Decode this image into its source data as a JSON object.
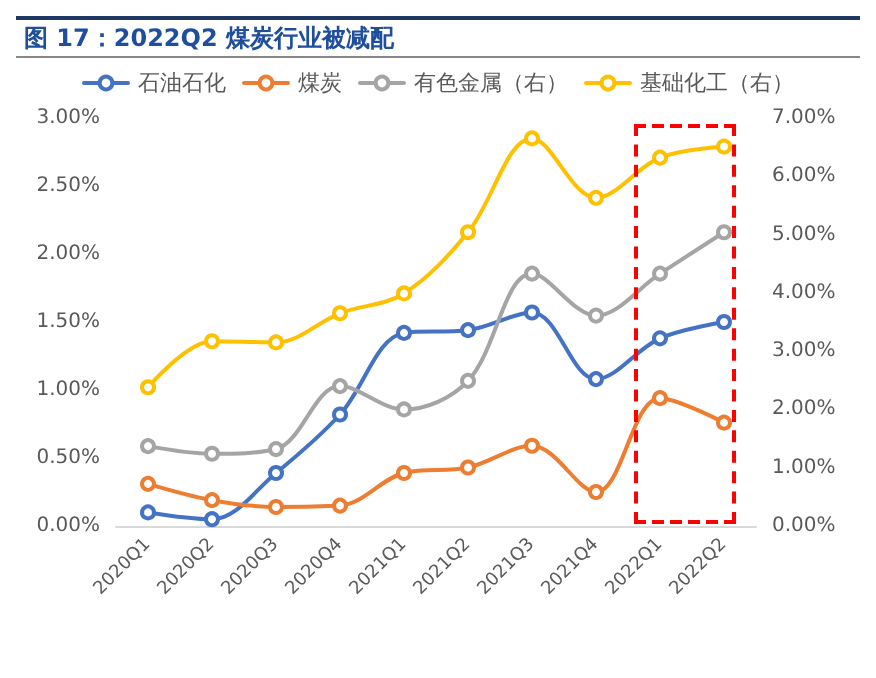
{
  "chart_data": {
    "type": "line",
    "title": "图 17：2022Q2 煤炭行业被减配",
    "categories": [
      "2020Q1",
      "2020Q2",
      "2020Q3",
      "2020Q4",
      "2021Q1",
      "2021Q2",
      "2021Q3",
      "2021Q4",
      "2022Q1",
      "2022Q2"
    ],
    "series": [
      {
        "name": "石油石化",
        "color": "#4472c4",
        "values": [
          0.1,
          0.05,
          0.39,
          0.82,
          1.42,
          1.44,
          1.57,
          1.08,
          1.38,
          1.5
        ]
      },
      {
        "name": "煤炭",
        "color": "#ed7d31",
        "values": [
          0.31,
          0.19,
          0.14,
          0.15,
          0.39,
          0.43,
          0.59,
          0.25,
          0.94,
          0.76
        ]
      },
      {
        "name": "有色金属（右）",
        "color": "#a5a5a5",
        "axis": "y2",
        "values": [
          1.37,
          1.24,
          1.32,
          2.4,
          2.0,
          2.49,
          4.33,
          3.61,
          4.33,
          5.04
        ]
      },
      {
        "name": "基础化工（右）",
        "color": "#ffc000",
        "axis": "y2",
        "values": [
          2.38,
          3.17,
          3.15,
          3.65,
          3.99,
          5.04,
          6.65,
          5.63,
          6.32,
          6.51
        ]
      }
    ],
    "ylim": [
      0,
      3
    ],
    "yticks": [
      {
        "value": 0,
        "label": "0.00%"
      },
      {
        "value": 0.5,
        "label": "0.50%"
      },
      {
        "value": 1,
        "label": "1.00%"
      },
      {
        "value": 1.5,
        "label": "1.50%"
      },
      {
        "value": 2,
        "label": "2.00%"
      },
      {
        "value": 2.5,
        "label": "2.50%"
      },
      {
        "value": 3,
        "label": "3.00%"
      }
    ],
    "y2lim": [
      0,
      7
    ],
    "y2ticks": [
      {
        "value": 0,
        "label": "0.00%"
      },
      {
        "value": 1,
        "label": "1.00%"
      },
      {
        "value": 2,
        "label": "2.00%"
      },
      {
        "value": 3,
        "label": "3.00%"
      },
      {
        "value": 4,
        "label": "4.00%"
      },
      {
        "value": 5,
        "label": "5.00%"
      },
      {
        "value": 6,
        "label": "6.00%"
      },
      {
        "value": 7,
        "label": "7.00%"
      }
    ],
    "grid": false,
    "legend": "top",
    "marker": "circle",
    "line_style": "solid"
  }
}
